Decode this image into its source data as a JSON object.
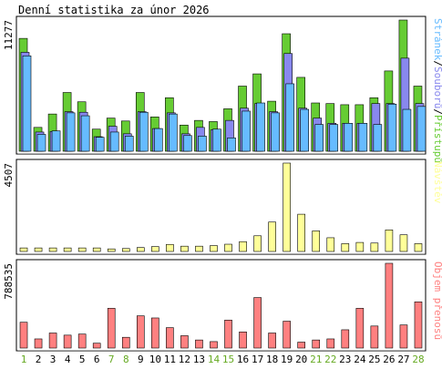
{
  "title": "Denní statistika za únor 2026",
  "colors": {
    "pristupy": "#66cc33",
    "soubory": "#8888ee",
    "stranky": "#66bbff",
    "navstevy": "#ffff99",
    "objem": "#ff8080",
    "weekend_label": "#66aa22",
    "weekday_label": "#000000"
  },
  "chart_data": [
    {
      "type": "bar",
      "id": "traffic",
      "ymax_label": "11277",
      "ylim": [
        0,
        11277
      ],
      "legend": [
        {
          "text": "Přístupů",
          "color": "#66cc33"
        },
        {
          "text": "Souborů",
          "color": "#8888ee"
        },
        {
          "text": "Stránek",
          "color": "#66bbff"
        }
      ],
      "series": [
        {
          "name": "Přístupů",
          "values": [
            9700,
            2050,
            3200,
            5050,
            4250,
            1900,
            2850,
            2600,
            5050,
            2950,
            4600,
            2250,
            2650,
            2550,
            3650,
            5600,
            6650,
            4300,
            10100,
            6350,
            4150,
            4100,
            4000,
            4000,
            4600,
            6900,
            11277,
            5600
          ]
        },
        {
          "name": "Souborů",
          "values": [
            8500,
            1650,
            1700,
            3400,
            3350,
            1250,
            2150,
            1500,
            3400,
            1950,
            3300,
            1500,
            2050,
            1850,
            2650,
            3700,
            4100,
            3400,
            8400,
            3700,
            2850,
            2400,
            2400,
            2400,
            4100,
            4100,
            8000,
            4100
          ]
        },
        {
          "name": "Stránek",
          "values": [
            8200,
            1450,
            1750,
            3300,
            3050,
            1200,
            1650,
            1300,
            3350,
            1950,
            3200,
            1350,
            1300,
            1900,
            1150,
            3450,
            4150,
            3300,
            5800,
            3600,
            2300,
            2300,
            2400,
            2400,
            2300,
            4050,
            3600,
            3850
          ]
        }
      ]
    },
    {
      "type": "bar",
      "id": "visits",
      "ymax_label": "4507",
      "ylim": [
        0,
        4507
      ],
      "legend": [
        {
          "text": "Návštěv",
          "color": "#ffff99"
        }
      ],
      "series": [
        {
          "name": "Návštěv",
          "values": [
            180,
            180,
            180,
            180,
            180,
            180,
            130,
            150,
            200,
            250,
            360,
            270,
            270,
            300,
            370,
            500,
            800,
            1500,
            4507,
            1900,
            1050,
            700,
            400,
            460,
            430,
            1100,
            850,
            400
          ]
        }
      ]
    },
    {
      "type": "bar",
      "id": "volume",
      "ymax_label": "788535",
      "ylim": [
        0,
        788535
      ],
      "legend": [
        {
          "text": "Objem přenosů",
          "color": "#ff8080"
        }
      ],
      "series": [
        {
          "name": "Objem přenosů",
          "values": [
            240000,
            85000,
            140000,
            120000,
            130000,
            45000,
            370000,
            100000,
            300000,
            280000,
            190000,
            115000,
            75000,
            60000,
            260000,
            150000,
            470000,
            140000,
            250000,
            55000,
            75000,
            85000,
            170000,
            370000,
            205000,
            788535,
            215000,
            430000
          ]
        }
      ]
    }
  ],
  "days": [
    "1",
    "2",
    "3",
    "4",
    "5",
    "6",
    "7",
    "8",
    "9",
    "10",
    "11",
    "12",
    "13",
    "14",
    "15",
    "16",
    "17",
    "18",
    "19",
    "20",
    "21",
    "22",
    "23",
    "24",
    "25",
    "26",
    "27",
    "28"
  ],
  "weekend_days": [
    1,
    7,
    8,
    14,
    15,
    21,
    22,
    28
  ]
}
